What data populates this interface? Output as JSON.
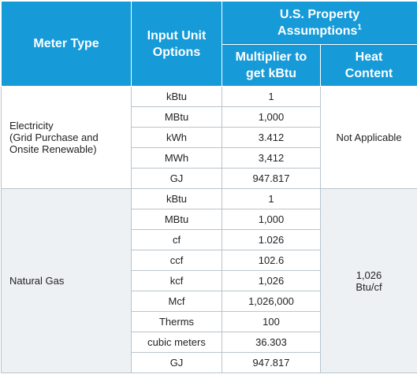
{
  "header": {
    "meter_type": "Meter Type",
    "input_unit_line1": "Input Unit",
    "input_unit_line2": "Options",
    "assumptions_line1": "U.S. Property",
    "assumptions_line2": "Assumptions",
    "assumptions_footnote": "1",
    "multiplier_line1": "Multiplier to",
    "multiplier_line2": "get kBtu",
    "heat_line1": "Heat",
    "heat_line2": "Content"
  },
  "electricity": {
    "label_line1": "Electricity",
    "label_line2": "(Grid Purchase and",
    "label_line3": "Onsite Renewable)",
    "heat_content": "Not Applicable",
    "rows": [
      {
        "unit": "kBtu",
        "multiplier": "1"
      },
      {
        "unit": "MBtu",
        "multiplier": "1,000"
      },
      {
        "unit": "kWh",
        "multiplier": "3.412"
      },
      {
        "unit": "MWh",
        "multiplier": "3,412"
      },
      {
        "unit": "GJ",
        "multiplier": "947.817"
      }
    ]
  },
  "natural_gas": {
    "label": "Natural Gas",
    "heat_line1": "1,026",
    "heat_line2": "Btu/cf",
    "rows": [
      {
        "unit": "kBtu",
        "multiplier": "1"
      },
      {
        "unit": "MBtu",
        "multiplier": "1,000"
      },
      {
        "unit": "cf",
        "multiplier": "1.026"
      },
      {
        "unit": "ccf",
        "multiplier": "102.6"
      },
      {
        "unit": "kcf",
        "multiplier": "1,026"
      },
      {
        "unit": "Mcf",
        "multiplier": "1,026,000"
      },
      {
        "unit": "Therms",
        "multiplier": "100"
      },
      {
        "unit": "cubic meters",
        "multiplier": "36.303"
      },
      {
        "unit": "GJ",
        "multiplier": "947.817"
      }
    ]
  },
  "colors": {
    "header_bg": "#169ad8",
    "header_text": "#ffffff",
    "gas_group_bg": "#eef1f4",
    "grid_line": "#b9c4cc"
  }
}
